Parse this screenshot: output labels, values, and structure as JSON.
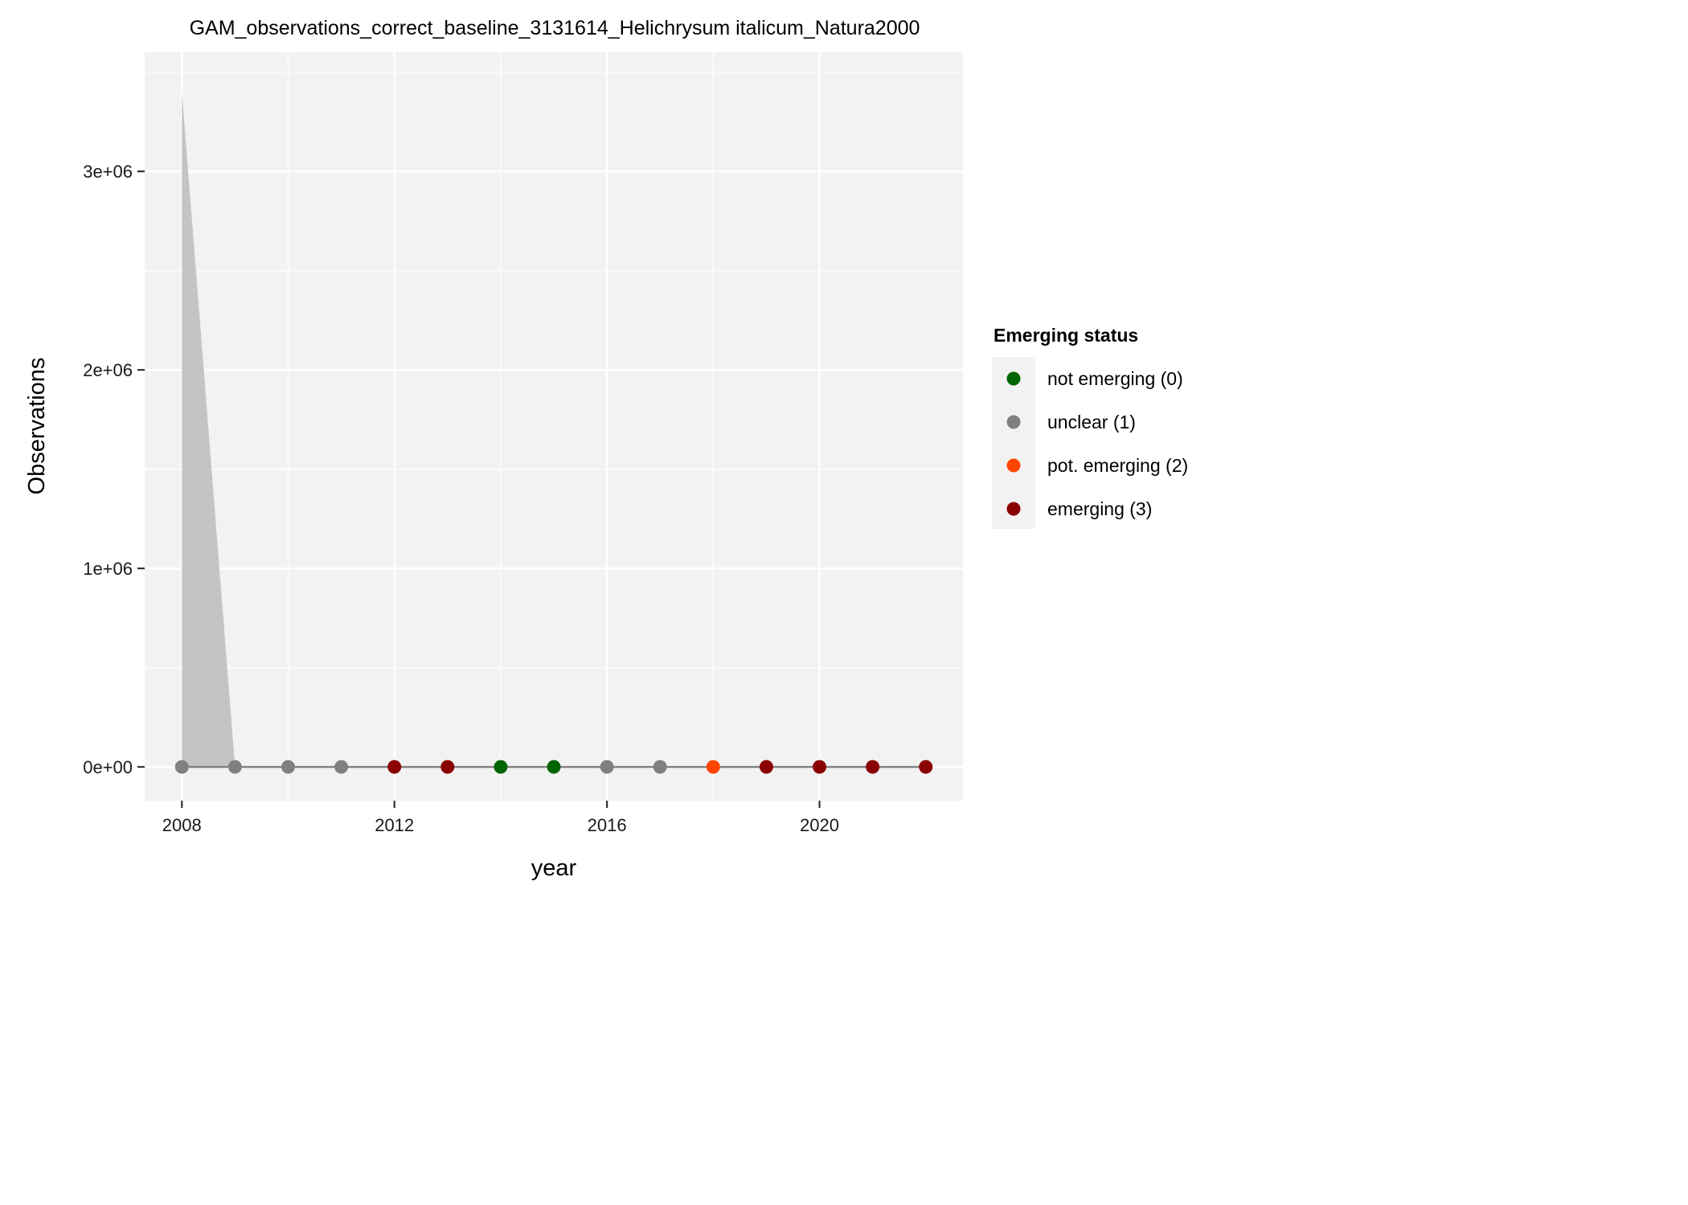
{
  "chart_data": {
    "type": "line",
    "title": "GAM_observations_correct_baseline_3131614_Helichrysum italicum_Natura2000",
    "xlabel": "year",
    "ylabel": "Observations",
    "xlim": [
      2007.3,
      2022.7
    ],
    "ylim": [
      -170000,
      3600000
    ],
    "x_ticks": [
      2008,
      2012,
      2016,
      2020
    ],
    "x_tick_labels": [
      "2008",
      "2012",
      "2016",
      "2020"
    ],
    "y_ticks": [
      0,
      1000000,
      2000000,
      3000000
    ],
    "y_tick_labels": [
      "0e+00",
      "1e+06",
      "2e+06",
      "3e+06"
    ],
    "grid": true,
    "legend": {
      "title": "Emerging status",
      "position": "right",
      "entries": [
        {
          "label": "not emerging (0)",
          "color": "#006400"
        },
        {
          "label": "unclear (1)",
          "color": "#808080"
        },
        {
          "label": "pot. emerging (2)",
          "color": "#FF4500"
        },
        {
          "label": "emerging (3)",
          "color": "#8B0000"
        }
      ]
    },
    "ribbon": {
      "x": [
        2008,
        2009
      ],
      "lower": [
        0,
        0
      ],
      "upper": [
        3400000,
        0
      ],
      "color": "#c4c4c4"
    },
    "line_color": "#808080",
    "series": [
      {
        "x": [
          2008,
          2009,
          2010,
          2011,
          2012,
          2013,
          2014,
          2015,
          2016,
          2017,
          2018,
          2019,
          2020,
          2021,
          2022
        ],
        "values": [
          0,
          0,
          0,
          0,
          0,
          0,
          0,
          0,
          0,
          0,
          0,
          0,
          0,
          0,
          0
        ],
        "status": [
          1,
          1,
          1,
          1,
          3,
          3,
          0,
          0,
          1,
          1,
          2,
          3,
          3,
          3,
          3
        ]
      }
    ]
  }
}
